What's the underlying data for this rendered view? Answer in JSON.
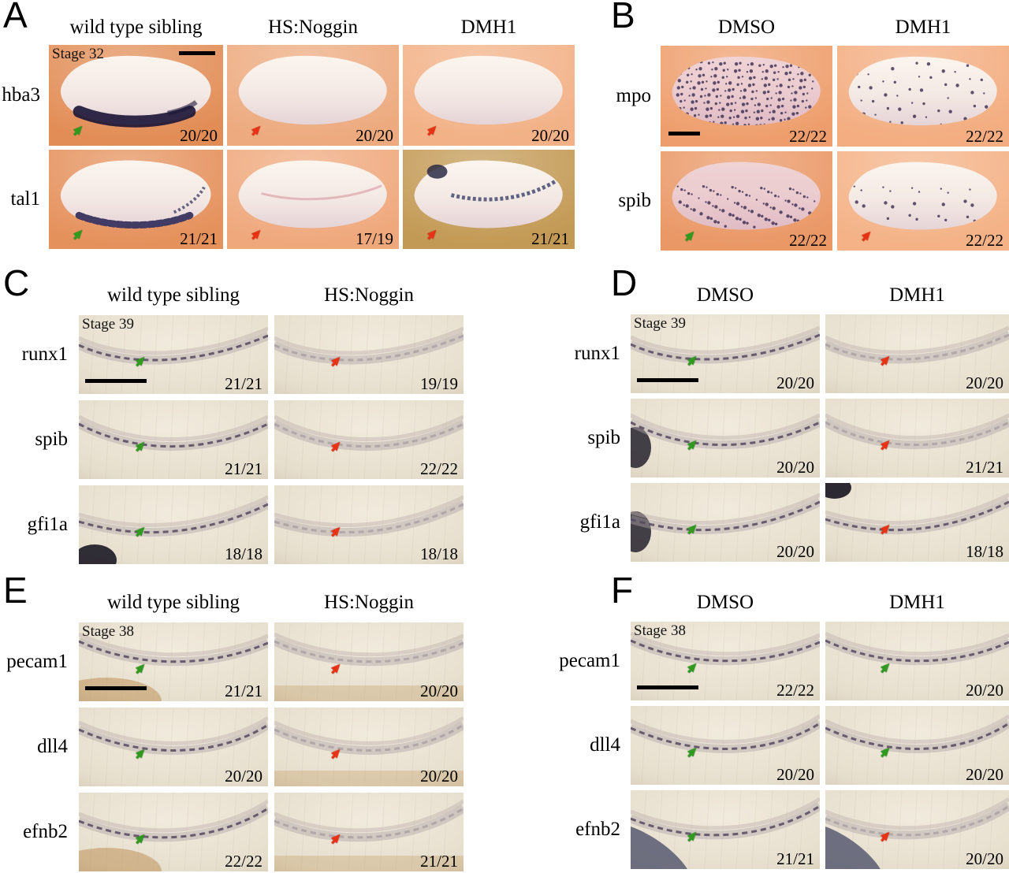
{
  "colors": {
    "green_arrow": "#2f9a1e",
    "red_arrow": "#e93114",
    "scale_bar": "#000000",
    "background": "#ffffff"
  },
  "panels": [
    {
      "id": "A",
      "label": "A",
      "stage": "Stage 32",
      "style": "whole",
      "columns": [
        "wild type sibling",
        "HS:Noggin",
        "DMH1"
      ],
      "rows": [
        {
          "gene": "hba3",
          "cells": [
            {
              "count": "20/20",
              "arrow": "green",
              "bg": "#e28d56",
              "stain": "ventral-band",
              "scalebar": "top-right"
            },
            {
              "count": "20/20",
              "arrow": "red",
              "bg": "#edaa7e",
              "stain": "none"
            },
            {
              "count": "20/20",
              "arrow": "red",
              "bg": "#f2b186",
              "stain": "none"
            }
          ]
        },
        {
          "gene": "tal1",
          "cells": [
            {
              "count": "21/21",
              "arrow": "green",
              "bg": "#e5915c",
              "stain": "ventral-dots"
            },
            {
              "count": "17/19",
              "arrow": "red",
              "bg": "#efa87c",
              "stain": "faint-pink"
            },
            {
              "count": "21/21",
              "arrow": "red",
              "bg": "#c39a55",
              "stain": "mid-line"
            }
          ]
        }
      ]
    },
    {
      "id": "B",
      "label": "B",
      "stage": null,
      "style": "whole",
      "columns": [
        "DMSO",
        "DMH1"
      ],
      "rows": [
        {
          "gene": "mpo",
          "cells": [
            {
              "count": "22/22",
              "arrow": null,
              "bg": "#ee9e6c",
              "stain": "speckles-dense",
              "tint": "pink",
              "scalebar": "bottom-left"
            },
            {
              "count": "22/22",
              "arrow": null,
              "bg": "#f3ad80",
              "stain": "speckles-light"
            }
          ]
        },
        {
          "gene": "spib",
          "cells": [
            {
              "count": "22/22",
              "arrow": "green",
              "bg": "#ea9866",
              "stain": "speckles-medium",
              "tint": "pink"
            },
            {
              "count": "22/22",
              "arrow": "red",
              "bg": "#f4b286",
              "stain": "speckles-sparse"
            }
          ]
        }
      ]
    },
    {
      "id": "C",
      "label": "C",
      "stage": "Stage 39",
      "style": "trunk",
      "columns": [
        "wild type sibling",
        "HS:Noggin"
      ],
      "rows": [
        {
          "gene": "runx1",
          "cells": [
            {
              "count": "21/21",
              "arrow": "green",
              "expr": "strong",
              "scalebar": "bottom-left"
            },
            {
              "count": "19/19",
              "arrow": "red",
              "expr": "weak"
            }
          ]
        },
        {
          "gene": "spib",
          "cells": [
            {
              "count": "21/21",
              "arrow": "green",
              "expr": "strong"
            },
            {
              "count": "22/22",
              "arrow": "red",
              "expr": "weak"
            }
          ]
        },
        {
          "gene": "gfi1a",
          "cells": [
            {
              "count": "18/18",
              "arrow": "green",
              "expr": "strong",
              "features": [
                "mass-bl"
              ]
            },
            {
              "count": "18/18",
              "arrow": "red",
              "expr": "weak"
            }
          ]
        }
      ]
    },
    {
      "id": "D",
      "label": "D",
      "stage": "Stage 39",
      "style": "trunk",
      "columns": [
        "DMSO",
        "DMH1"
      ],
      "rows": [
        {
          "gene": "runx1",
          "cells": [
            {
              "count": "20/20",
              "arrow": "green",
              "expr": "strong",
              "scalebar": "bottom-left"
            },
            {
              "count": "20/20",
              "arrow": "red",
              "expr": "weak"
            }
          ]
        },
        {
          "gene": "spib",
          "cells": [
            {
              "count": "20/20",
              "arrow": "green",
              "expr": "strong",
              "features": [
                "mass-l"
              ]
            },
            {
              "count": "21/21",
              "arrow": "red",
              "expr": "weak"
            }
          ]
        },
        {
          "gene": "gfi1a",
          "cells": [
            {
              "count": "20/20",
              "arrow": "green",
              "expr": "strong",
              "features": [
                "mass-l"
              ]
            },
            {
              "count": "18/18",
              "arrow": "red",
              "expr": "strong",
              "features": [
                "mass-tl"
              ]
            }
          ]
        }
      ]
    },
    {
      "id": "E",
      "label": "E",
      "stage": "Stage 38",
      "style": "trunk",
      "columns": [
        "wild type sibling",
        "HS:Noggin"
      ],
      "rows": [
        {
          "gene": "pecam1",
          "cells": [
            {
              "count": "21/21",
              "arrow": "green",
              "expr": "strong",
              "features": [
                "brown-bl"
              ],
              "scalebar": "bottom-left"
            },
            {
              "count": "20/20",
              "arrow": "red",
              "expr": "weak",
              "features": [
                "brown-b"
              ]
            }
          ]
        },
        {
          "gene": "dll4",
          "cells": [
            {
              "count": "20/20",
              "arrow": "green",
              "expr": "strong"
            },
            {
              "count": "20/20",
              "arrow": "red",
              "expr": "weak",
              "features": [
                "brown-b"
              ]
            }
          ]
        },
        {
          "gene": "efnb2",
          "cells": [
            {
              "count": "22/22",
              "arrow": "green",
              "expr": "strong",
              "features": [
                "brown-bl"
              ]
            },
            {
              "count": "21/21",
              "arrow": "red",
              "expr": "weak",
              "features": [
                "brown-b"
              ]
            }
          ]
        }
      ]
    },
    {
      "id": "F",
      "label": "F",
      "stage": "Stage 38",
      "style": "trunk",
      "columns": [
        "DMSO",
        "DMH1"
      ],
      "rows": [
        {
          "gene": "pecam1",
          "cells": [
            {
              "count": "22/22",
              "arrow": "green",
              "expr": "strong",
              "scalebar": "bottom-left"
            },
            {
              "count": "20/20",
              "arrow": "green",
              "expr": "strong"
            }
          ]
        },
        {
          "gene": "dll4",
          "cells": [
            {
              "count": "20/20",
              "arrow": "green",
              "expr": "strong"
            },
            {
              "count": "20/20",
              "arrow": "green",
              "expr": "strong"
            }
          ]
        },
        {
          "gene": "efnb2",
          "cells": [
            {
              "count": "21/21",
              "arrow": "green",
              "expr": "strong",
              "features": [
                "slate-bl"
              ]
            },
            {
              "count": "20/20",
              "arrow": "red",
              "expr": "weak",
              "features": [
                "slate-bl"
              ]
            }
          ]
        }
      ]
    }
  ]
}
